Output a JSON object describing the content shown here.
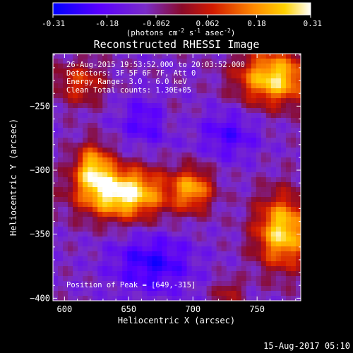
{
  "chart_data": {
    "type": "heatmap",
    "title": "Reconstructed RHESSI Image",
    "xlabel": "Heliocentric X (arcsec)",
    "ylabel": "Heliocentric Y (arcsec)",
    "xlim": [
      591,
      784
    ],
    "ylim": [
      -402,
      -209
    ],
    "xticks": [
      600,
      650,
      700,
      750
    ],
    "yticks": [
      -250,
      -300,
      -350,
      -400
    ],
    "colorbar": {
      "min": -0.31,
      "max": 0.31,
      "ticks": [
        "-0.31",
        "-0.18",
        "-0.062",
        "0.062",
        "0.18",
        "0.31"
      ],
      "unit_label": "(photons cm",
      "unit_sup1": "-2",
      "unit_mid": " s",
      "unit_sup2": "-1",
      "unit_mid2": " asec",
      "unit_sup3": "-2",
      "unit_end": ")"
    },
    "annotations": {
      "line1": "26-Aug-2015 19:53:52.000 to 20:03:52.000",
      "line2": "Detectors: 3F 5F 6F 7F, Att 0",
      "line3": "Energy Range: 3.0 - 6.0 keV",
      "line4": "Clean    Total counts: 1.30E+05",
      "peak": "Position of Peak = [649,-315]"
    },
    "sources": [
      {
        "x": 645,
        "y": -318,
        "sx": 24,
        "sy": 14,
        "amp": 0.42
      },
      {
        "x": 622,
        "y": -297,
        "sx": 10,
        "sy": 13,
        "amp": 0.28
      },
      {
        "x": 700,
        "y": -315,
        "sx": 11,
        "sy": 12,
        "amp": 0.27
      },
      {
        "x": 763,
        "y": -228,
        "sx": 20,
        "sy": 15,
        "amp": 0.36
      },
      {
        "x": 770,
        "y": -348,
        "sx": 15,
        "sy": 20,
        "amp": 0.36
      },
      {
        "x": 612,
        "y": -232,
        "sx": 14,
        "sy": 12,
        "amp": 0.18
      },
      {
        "x": 728,
        "y": -395,
        "sx": 8,
        "sy": 7,
        "amp": 0.13
      },
      {
        "x": 683,
        "y": -258,
        "sx": 9,
        "sy": 9,
        "amp": 0.07
      }
    ],
    "background": {
      "level": -0.09,
      "amp": 0.05
    },
    "troughs": [
      {
        "x": 668,
        "y": -373,
        "sx": 22,
        "sy": 16,
        "amp": -0.16
      },
      {
        "x": 665,
        "y": -262,
        "sx": 16,
        "sy": 14,
        "amp": -0.12
      },
      {
        "x": 728,
        "y": -272,
        "sx": 16,
        "sy": 14,
        "amp": -0.12
      }
    ]
  },
  "footer": {
    "timestamp": "15-Aug-2017 05:10"
  }
}
